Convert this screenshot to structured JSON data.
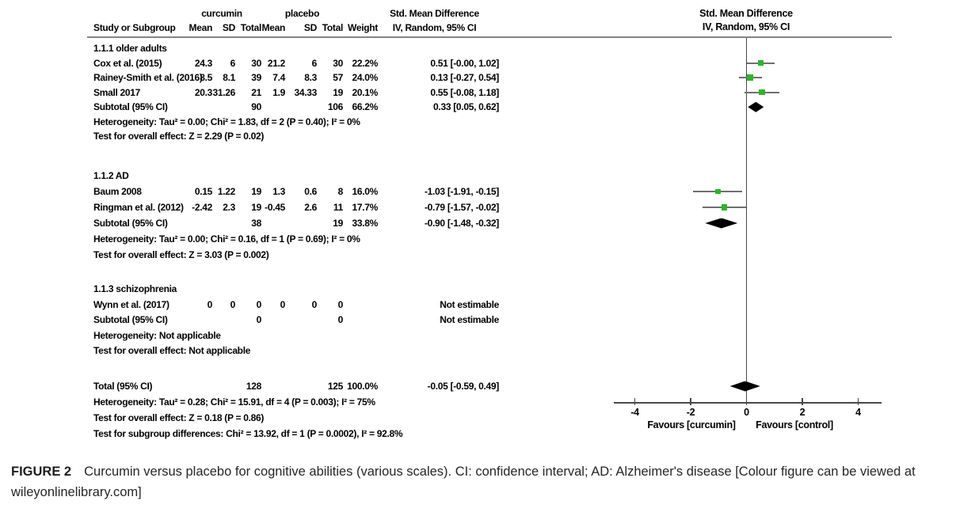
{
  "header": {
    "group_exp": "curcumin",
    "group_ctl": "placebo",
    "smd_label": "Std. Mean Difference",
    "cols": {
      "study": "Study or Subgroup",
      "mean": "Mean",
      "sd": "SD",
      "total": "Total",
      "weight": "Weight",
      "ci": "IV, Random, 95% CI"
    },
    "plot_title": "Std. Mean Difference",
    "plot_sub": "IV, Random, 95% CI"
  },
  "sections": [
    {
      "title": "1.1.1 older adults",
      "rows": [
        {
          "study": "Cox et al. (2015)",
          "m1": "24.3",
          "sd1": "6",
          "t1": "30",
          "m2": "21.2",
          "sd2": "6",
          "t2": "30",
          "w": "22.2%",
          "est": "0.51 [-0.00, 1.02]"
        },
        {
          "study": "Rainey-Smith et al. (2016)",
          "m1": "8.5",
          "sd1": "8.1",
          "t1": "39",
          "m2": "7.4",
          "sd2": "8.3",
          "t2": "57",
          "w": "24.0%",
          "est": "0.13 [-0.27, 0.54]"
        },
        {
          "study": "Small 2017",
          "m1": "20.3",
          "sd1": "31.26",
          "t1": "21",
          "m2": "1.9",
          "sd2": "34.33",
          "t2": "19",
          "w": "20.1%",
          "est": "0.55 [-0.08, 1.18]"
        }
      ],
      "subtotal": {
        "study": "Subtotal (95% CI)",
        "t1": "90",
        "t2": "106",
        "w": "66.2%",
        "est": "0.33 [0.05, 0.62]"
      },
      "het": "Heterogeneity: Tau² = 0.00; Chi² = 1.83, df = 2 (P = 0.40); I² = 0%",
      "test": "Test for overall effect: Z = 2.29 (P = 0.02)"
    },
    {
      "title": "1.1.2 AD",
      "rows": [
        {
          "study": "Baum 2008",
          "m1": "0.15",
          "sd1": "1.22",
          "t1": "19",
          "m2": "1.3",
          "sd2": "0.6",
          "t2": "8",
          "w": "16.0%",
          "est": "-1.03 [-1.91, -0.15]"
        },
        {
          "study": "Ringman et al. (2012)",
          "m1": "-2.42",
          "sd1": "2.3",
          "t1": "19",
          "m2": "-0.45",
          "sd2": "2.6",
          "t2": "11",
          "w": "17.7%",
          "est": "-0.79 [-1.57, -0.02]"
        }
      ],
      "subtotal": {
        "study": "Subtotal (95% CI)",
        "t1": "38",
        "t2": "19",
        "w": "33.8%",
        "est": "-0.90 [-1.48, -0.32]"
      },
      "het": "Heterogeneity: Tau² = 0.00; Chi² = 0.16, df = 1 (P = 0.69); I² = 0%",
      "test": "Test for overall effect: Z = 3.03 (P = 0.002)"
    },
    {
      "title": "1.1.3 schizophrenia",
      "rows": [
        {
          "study": "Wynn et al. (2017)",
          "m1": "0",
          "sd1": "0",
          "t1": "0",
          "m2": "0",
          "sd2": "0",
          "t2": "0",
          "w": "",
          "est": "Not estimable"
        }
      ],
      "subtotal": {
        "study": "Subtotal (95% CI)",
        "t1": "0",
        "t2": "0",
        "w": "",
        "est": "Not estimable"
      },
      "het": "Heterogeneity: Not applicable",
      "test": "Test for overall effect: Not applicable"
    }
  ],
  "total": {
    "row": {
      "study": "Total (95% CI)",
      "t1": "128",
      "t2": "125",
      "w": "100.0%",
      "est": "-0.05 [-0.59, 0.49]"
    },
    "het": "Heterogeneity: Tau² = 0.28; Chi² = 15.91, df = 4 (P = 0.003); I² = 75%",
    "test": "Test for overall effect: Z = 0.18 (P = 0.86)",
    "subgroup": "Test for subgroup differences: Chi² = 13.92, df = 1 (P = 0.0002), I² = 92.8%"
  },
  "chart_data": {
    "type": "forest",
    "title": "Std. Mean Difference",
    "effect_model": "IV, Random, 95% CI",
    "x_ticks": [
      -4,
      -2,
      0,
      2,
      4
    ],
    "xlim": [
      -4.75,
      4.85
    ],
    "x_axis_labels": [
      "Favours [curcumin]",
      "Favours [control]"
    ],
    "marker_color": "#2cb52c",
    "line_color": "#6f6f6f",
    "markers": [
      {
        "id": "cox",
        "kind": "square",
        "label": "Cox et al. (2015)",
        "est": 0.51,
        "lo": -0.0,
        "hi": 1.02,
        "weight": 22.2
      },
      {
        "id": "rainey",
        "kind": "square",
        "label": "Rainey-Smith et al. (2016)",
        "est": 0.13,
        "lo": -0.27,
        "hi": 0.54,
        "weight": 24.0
      },
      {
        "id": "small",
        "kind": "square",
        "label": "Small 2017",
        "est": 0.55,
        "lo": -0.08,
        "hi": 1.18,
        "weight": 20.1
      },
      {
        "id": "sub1",
        "kind": "diamond",
        "label": "Subtotal older adults",
        "est": 0.33,
        "lo": 0.05,
        "hi": 0.62
      },
      {
        "id": "baum",
        "kind": "square",
        "label": "Baum 2008",
        "est": -1.03,
        "lo": -1.91,
        "hi": -0.15,
        "weight": 16.0
      },
      {
        "id": "ringman",
        "kind": "square",
        "label": "Ringman et al. (2012)",
        "est": -0.79,
        "lo": -1.57,
        "hi": -0.02,
        "weight": 17.7
      },
      {
        "id": "sub2",
        "kind": "diamond",
        "label": "Subtotal AD",
        "est": -0.9,
        "lo": -1.48,
        "hi": -0.32
      },
      {
        "id": "total",
        "kind": "diamond",
        "label": "Total",
        "est": -0.05,
        "lo": -0.59,
        "hi": 0.49
      }
    ]
  },
  "caption": {
    "tag": "FIGURE 2",
    "text": "Curcumin versus placebo for cognitive abilities (various scales). CI: confidence interval; AD: Alzheimer's disease [Colour figure can be viewed at wileyonlinelibrary.com]"
  }
}
